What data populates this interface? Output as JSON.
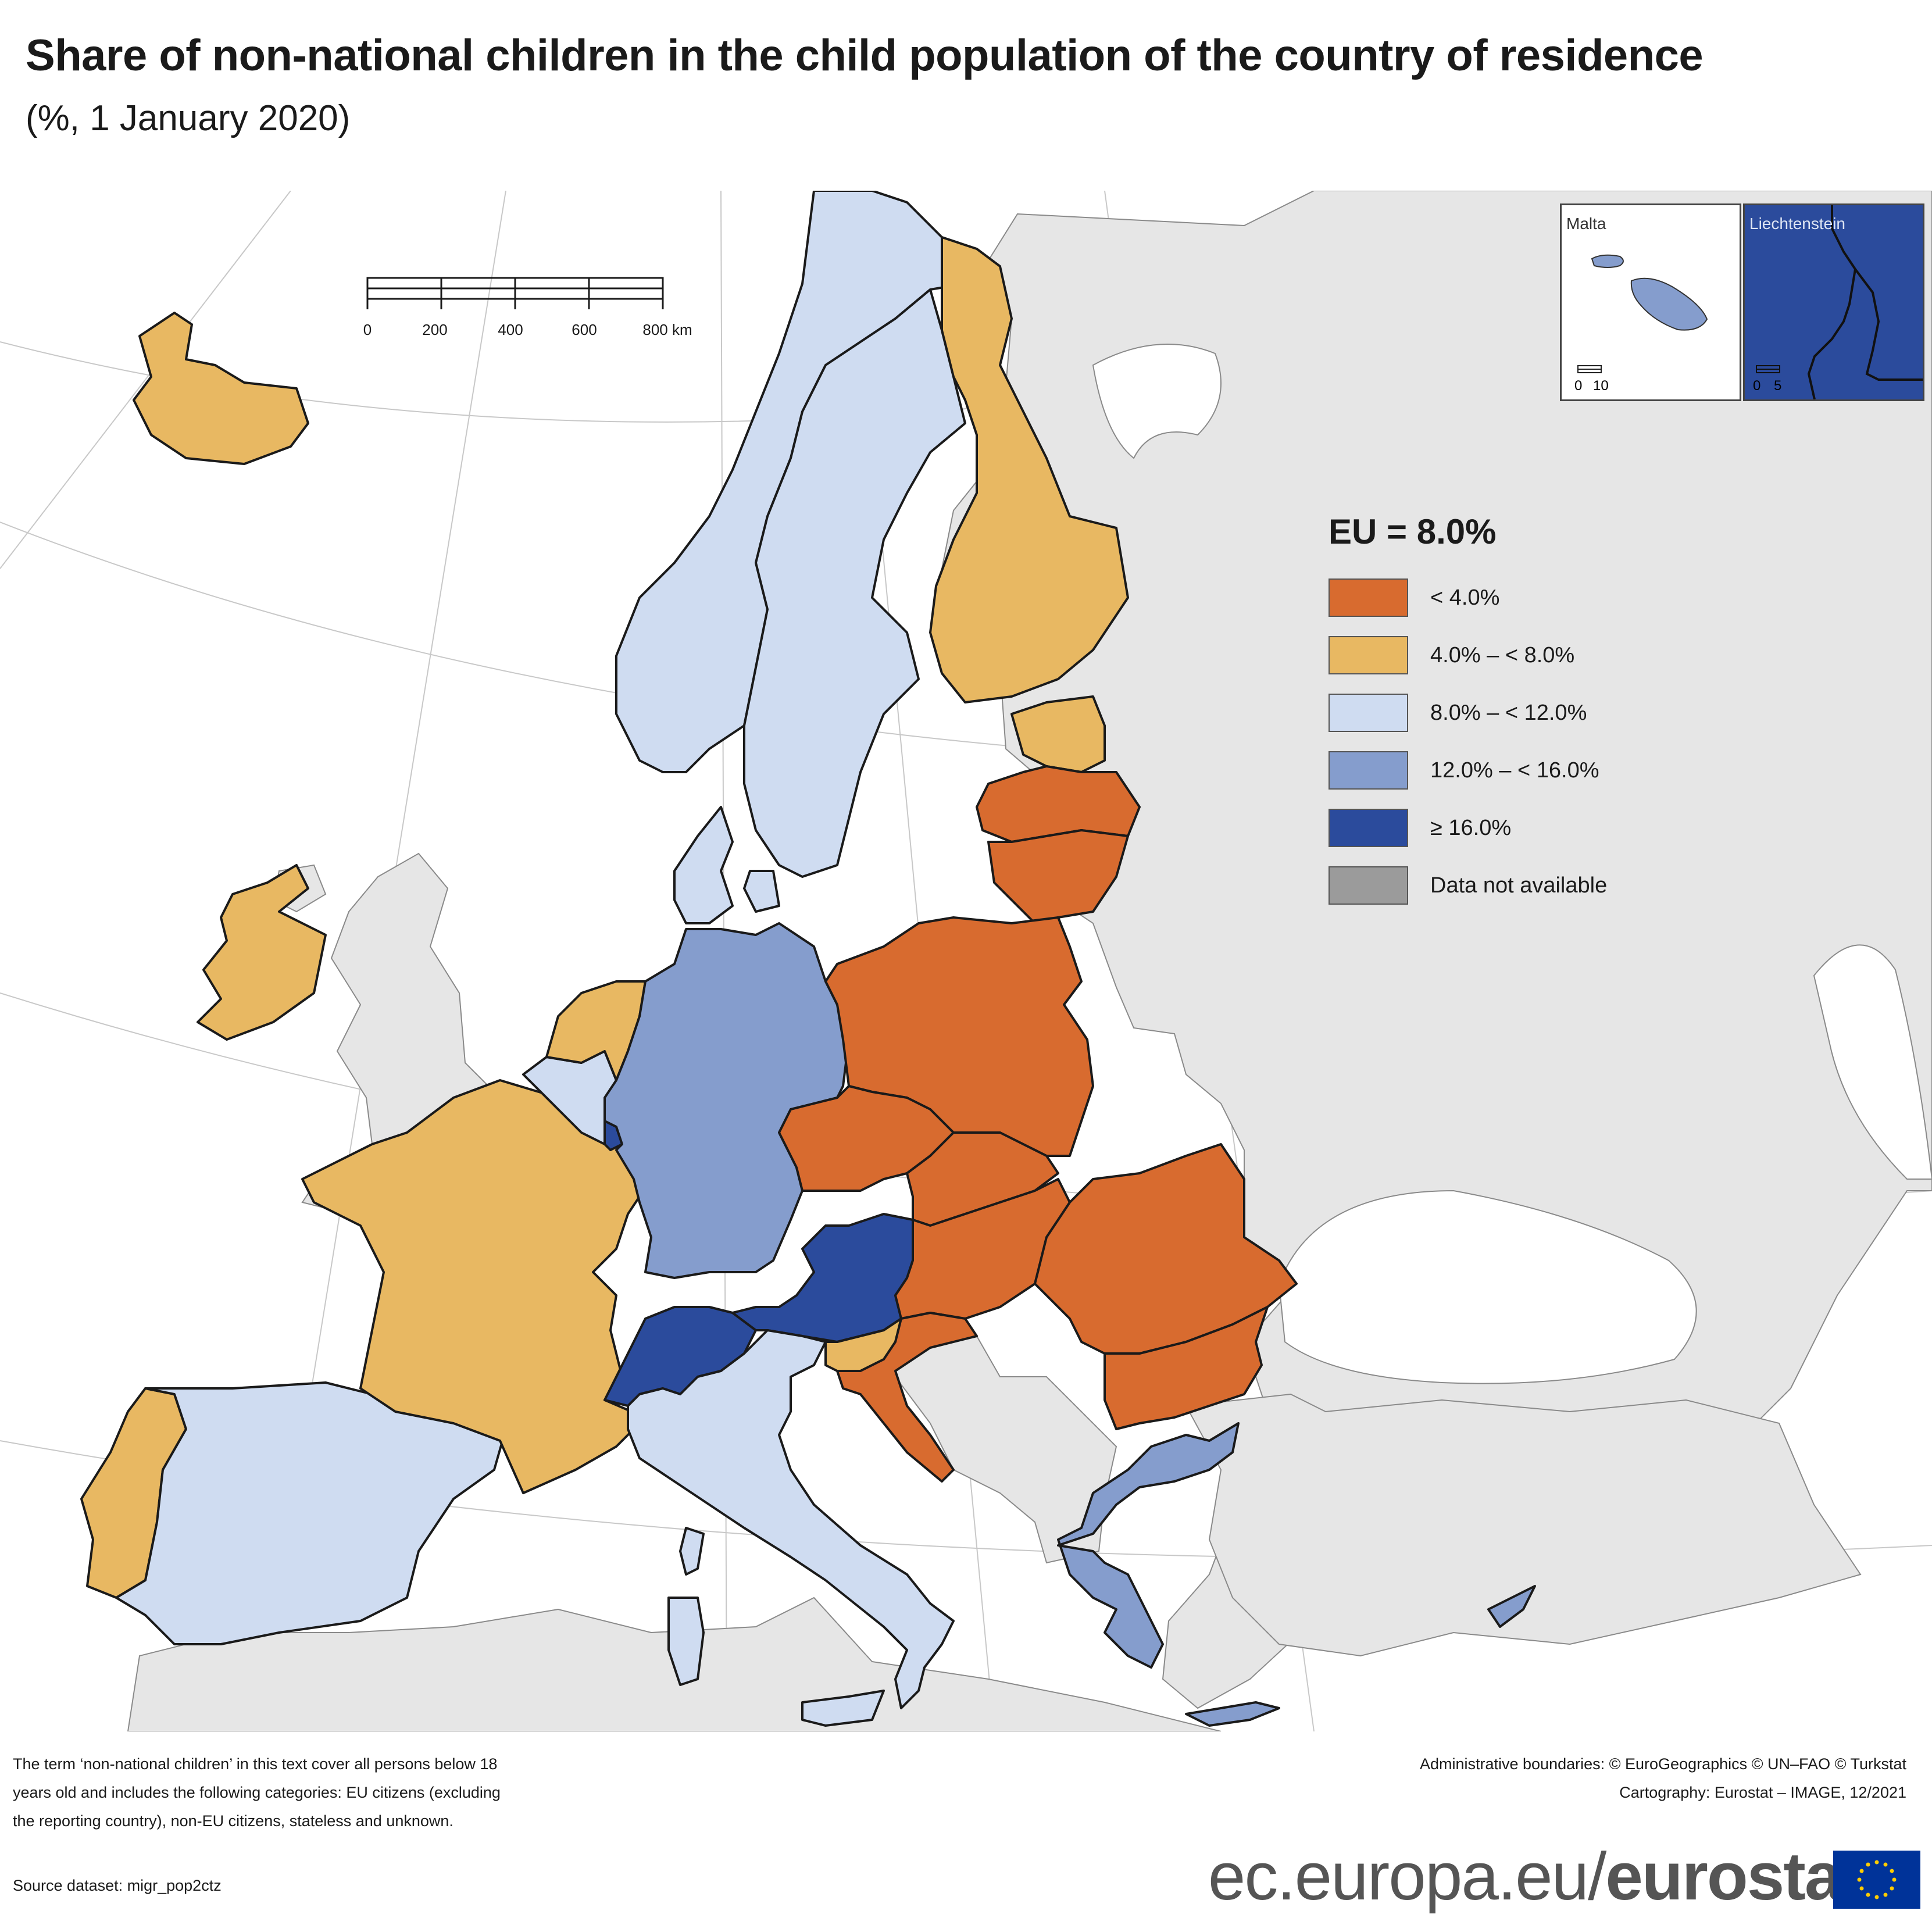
{
  "header": {
    "title": "Share of non-national children in the child population of the country of residence",
    "subtitle": "(%, 1 January 2020)"
  },
  "colors": {
    "below_4": "#d86b2f",
    "from_4_to_8": "#e8b862",
    "from_8_to_12": "#cfdcf1",
    "from_12_to_16": "#859dcd",
    "at_least_16": "#2b4b9c",
    "not_available": "#9b9b9b",
    "non_eu_land": "#e6e6e6",
    "sea": "#ffffff"
  },
  "legend": {
    "heading": "EU = 8.0%",
    "items": [
      {
        "label": "< 4.0%",
        "color": "#d86b2f"
      },
      {
        "label": "4.0% – < 8.0%",
        "color": "#e8b862"
      },
      {
        "label": "8.0% – < 12.0%",
        "color": "#cfdcf1"
      },
      {
        "label": "12.0% – < 16.0%",
        "color": "#859dcd"
      },
      {
        "label": "≥ 16.0%",
        "color": "#2b4b9c"
      },
      {
        "label": "Data not available",
        "color": "#9b9b9b"
      }
    ]
  },
  "scale_bar": {
    "ticks": [
      "0",
      "200",
      "400",
      "600",
      "800 km"
    ]
  },
  "insets": [
    {
      "label": "Malta",
      "scale_ticks": [
        "0",
        "10"
      ],
      "class": "from_12_to_16"
    },
    {
      "label": "Liechtenstein",
      "scale_ticks": [
        "0",
        "5"
      ],
      "class": "at_least_16"
    }
  ],
  "countries": [
    {
      "name": "Iceland",
      "class": "from_4_to_8"
    },
    {
      "name": "Ireland",
      "class": "from_4_to_8"
    },
    {
      "name": "Portugal",
      "class": "from_4_to_8"
    },
    {
      "name": "Spain",
      "class": "from_8_to_12"
    },
    {
      "name": "France",
      "class": "from_4_to_8"
    },
    {
      "name": "Belgium",
      "class": "from_8_to_12"
    },
    {
      "name": "Netherlands",
      "class": "from_4_to_8"
    },
    {
      "name": "Luxembourg",
      "class": "at_least_16"
    },
    {
      "name": "Germany",
      "class": "from_12_to_16"
    },
    {
      "name": "Switzerland",
      "class": "at_least_16"
    },
    {
      "name": "Austria",
      "class": "at_least_16"
    },
    {
      "name": "Italy",
      "class": "from_8_to_12"
    },
    {
      "name": "Norway",
      "class": "from_8_to_12"
    },
    {
      "name": "Sweden",
      "class": "from_8_to_12"
    },
    {
      "name": "Denmark",
      "class": "from_8_to_12"
    },
    {
      "name": "Finland",
      "class": "from_4_to_8"
    },
    {
      "name": "Estonia",
      "class": "from_4_to_8"
    },
    {
      "name": "Latvia",
      "class": "below_4"
    },
    {
      "name": "Lithuania",
      "class": "below_4"
    },
    {
      "name": "Poland",
      "class": "below_4"
    },
    {
      "name": "Czechia",
      "class": "below_4"
    },
    {
      "name": "Slovakia",
      "class": "below_4"
    },
    {
      "name": "Hungary",
      "class": "below_4"
    },
    {
      "name": "Slovenia",
      "class": "from_4_to_8"
    },
    {
      "name": "Croatia",
      "class": "below_4"
    },
    {
      "name": "Romania",
      "class": "below_4"
    },
    {
      "name": "Bulgaria",
      "class": "below_4"
    },
    {
      "name": "Greece",
      "class": "from_12_to_16"
    },
    {
      "name": "Cyprus",
      "class": "from_12_to_16"
    },
    {
      "name": "Malta",
      "class": "from_12_to_16"
    },
    {
      "name": "Liechtenstein",
      "class": "at_least_16"
    }
  ],
  "footnote": "The term ‘non-national children’ in this text cover all persons below 18 years old and includes the following categories: EU citizens (excluding the reporting country), non-EU citizens, stateless and unknown.",
  "source": "Source dataset: migr_pop2ctz",
  "credits": {
    "boundaries": "Administrative boundaries: © EuroGeographics © UN–FAO © Turkstat",
    "cartography": "Cartography: Eurostat – IMAGE, 12/2021"
  },
  "brand": {
    "prefix": "ec.europa.eu/",
    "name": "eurostat"
  }
}
